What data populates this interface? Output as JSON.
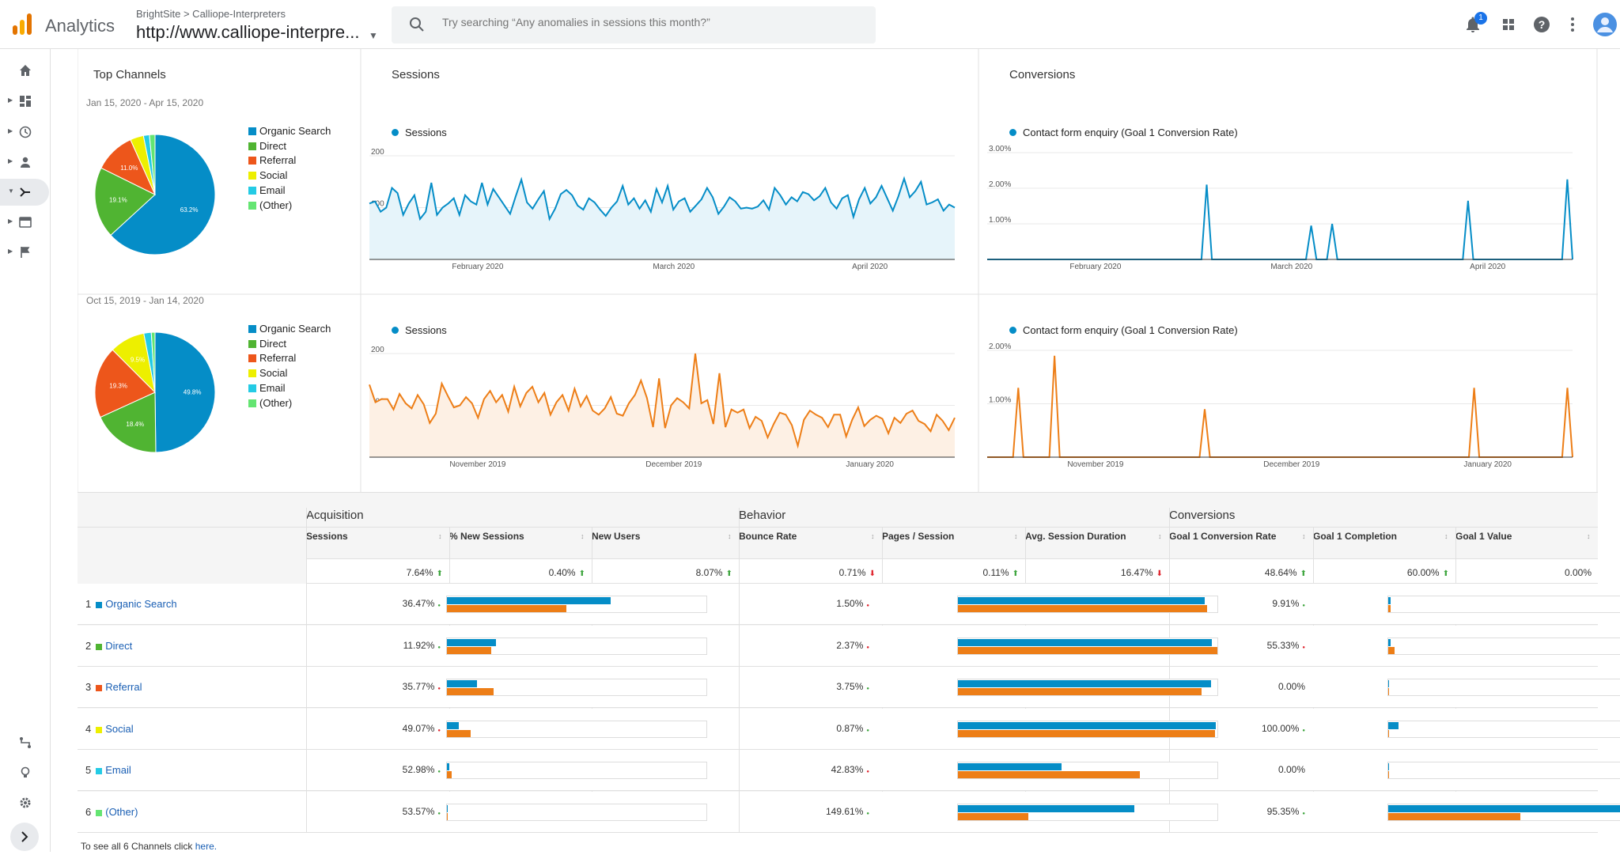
{
  "header": {
    "app_name": "Analytics",
    "breadcrumb": "BrightSite > Calliope-Interpreters",
    "property": "http://www.calliope-interpre...",
    "search_placeholder": "Try searching “Any anomalies in sessions this month?”",
    "notification_count": "1"
  },
  "colors": {
    "blue": "#058dc7",
    "orange": "#ed7e17",
    "green": "#50b432",
    "red": "#ed561b",
    "yellow": "#edef00",
    "cyan": "#24cbe5",
    "lightgreen": "#64e572"
  },
  "panels": {
    "top_channels": "Top Channels",
    "sessions": "Sessions",
    "conversions": "Conversions",
    "range_current": "Jan 15, 2020 - Apr 15, 2020",
    "range_previous": "Oct 15, 2019 - Jan 14, 2020",
    "sessions_series": "Sessions",
    "conversion_series": "Contact form enquiry (Goal 1 Conversion Rate)"
  },
  "chart_data": [
    {
      "type": "pie",
      "title": "Jan 15, 2020 - Apr 15, 2020",
      "categories": [
        "Organic Search",
        "Direct",
        "Referral",
        "Social",
        "Email",
        "(Other)"
      ],
      "values": [
        63.2,
        19.1,
        11.0,
        3.6,
        1.6,
        1.5
      ],
      "labels": [
        "63.2%",
        "19.1%",
        "11.0%",
        "",
        "",
        ""
      ],
      "colors": [
        "#058dc7",
        "#50b432",
        "#ed561b",
        "#edef00",
        "#24cbe5",
        "#64e572"
      ],
      "legend": "right"
    },
    {
      "type": "pie",
      "title": "Oct 15, 2019 - Jan 14, 2020",
      "categories": [
        "Organic Search",
        "Direct",
        "Referral",
        "Social",
        "Email",
        "(Other)"
      ],
      "values": [
        49.8,
        18.4,
        19.3,
        9.5,
        2.0,
        1.0
      ],
      "labels": [
        "49.8%",
        "18.4%",
        "19.3%",
        "9.5%",
        "",
        ""
      ],
      "colors": [
        "#058dc7",
        "#50b432",
        "#ed561b",
        "#edef00",
        "#24cbe5",
        "#64e572"
      ],
      "legend": "right"
    },
    {
      "type": "area",
      "series_name": "Sessions",
      "ylim": [
        0,
        200
      ],
      "yticks": [
        "200",
        "100"
      ],
      "xticks": [
        "February 2020",
        "March 2020",
        "April 2020"
      ],
      "color": "#058dc7",
      "values": [
        108,
        112,
        92,
        100,
        138,
        128,
        86,
        108,
        124,
        78,
        92,
        148,
        86,
        100,
        108,
        118,
        86,
        124,
        112,
        106,
        148,
        106,
        136,
        120,
        104,
        88,
        122,
        154,
        110,
        98,
        116,
        132,
        78,
        98,
        126,
        134,
        124,
        104,
        96,
        118,
        110,
        96,
        84,
        100,
        112,
        142,
        106,
        118,
        98,
        114,
        92,
        136,
        110,
        142,
        96,
        112,
        118,
        92,
        104,
        116,
        138,
        120,
        88,
        102,
        120,
        112,
        98,
        100,
        98,
        102,
        114,
        96,
        138,
        124,
        106,
        120,
        112,
        130,
        126,
        114,
        122,
        138,
        110,
        98,
        118,
        124,
        82,
        116,
        138,
        108,
        120,
        142,
        118,
        94,
        122,
        156,
        120,
        132,
        150,
        106,
        110,
        116,
        94,
        106,
        100
      ],
      "grid": true
    },
    {
      "type": "area",
      "series_name": "Sessions",
      "ylim": [
        0,
        200
      ],
      "yticks": [
        "200",
        "100"
      ],
      "xticks": [
        "November 2019",
        "December 2019",
        "January 2020"
      ],
      "color": "#ed7e17",
      "values": [
        140,
        106,
        112,
        112,
        92,
        122,
        104,
        94,
        120,
        102,
        66,
        84,
        142,
        118,
        96,
        100,
        116,
        104,
        76,
        112,
        128,
        106,
        120,
        88,
        136,
        98,
        124,
        136,
        106,
        124,
        82,
        106,
        120,
        90,
        132,
        98,
        118,
        90,
        82,
        94,
        116,
        84,
        80,
        104,
        120,
        148,
        114,
        58,
        152,
        56,
        100,
        114,
        106,
        94,
        200,
        104,
        110,
        64,
        162,
        58,
        92,
        86,
        92,
        56,
        78,
        70,
        38,
        64,
        86,
        82,
        62,
        22,
        72,
        90,
        82,
        76,
        58,
        82,
        82,
        40,
        72,
        96,
        60,
        72,
        80,
        74,
        46,
        76,
        66,
        84,
        90,
        70,
        64,
        50,
        82,
        70,
        52,
        76
      ],
      "grid": true
    },
    {
      "type": "line",
      "series_name": "Contact form enquiry (Goal 1 Conversion Rate)",
      "ylim": [
        0,
        3
      ],
      "yticks": [
        "3.00%",
        "2.00%",
        "1.00%"
      ],
      "xticks": [
        "February 2020",
        "March 2020",
        "April 2020"
      ],
      "color": "#058dc7",
      "values": [
        0,
        0,
        0,
        0,
        0,
        0,
        0,
        0,
        0,
        0,
        0,
        0,
        0,
        0,
        0,
        0,
        0,
        0,
        0,
        0,
        0,
        0,
        0,
        0,
        0,
        0,
        0,
        0,
        0,
        0,
        0,
        0,
        0,
        0,
        0,
        0,
        0,
        0,
        0,
        0,
        0,
        0,
        2.1,
        0,
        0,
        0,
        0,
        0,
        0,
        0,
        0,
        0,
        0,
        0,
        0,
        0,
        0,
        0,
        0,
        0,
        0,
        0,
        0.95,
        0,
        0,
        0,
        1.0,
        0,
        0,
        0,
        0,
        0,
        0,
        0,
        0,
        0,
        0,
        0,
        0,
        0,
        0,
        0,
        0,
        0,
        0,
        0,
        0,
        0,
        0,
        0,
        0,
        0,
        1.65,
        0,
        0,
        0,
        0,
        0,
        0,
        0,
        0,
        0,
        0,
        0,
        0,
        0,
        0,
        0,
        0,
        0,
        0,
        2.25,
        0
      ],
      "grid": true
    },
    {
      "type": "line",
      "series_name": "Contact form enquiry (Goal 1 Conversion Rate)",
      "ylim": [
        0,
        2
      ],
      "yticks": [
        "2.00%",
        "1.00%"
      ],
      "xticks": [
        "November 2019",
        "December 2019",
        "January 2020"
      ],
      "color": "#ed7e17",
      "values": [
        0,
        0,
        0,
        0,
        0,
        0,
        1.3,
        0,
        0,
        0,
        0,
        0,
        0,
        1.9,
        0,
        0,
        0,
        0,
        0,
        0,
        0,
        0,
        0,
        0,
        0,
        0,
        0,
        0,
        0,
        0,
        0,
        0,
        0,
        0,
        0,
        0,
        0,
        0,
        0,
        0,
        0,
        0,
        0.9,
        0,
        0,
        0,
        0,
        0,
        0,
        0,
        0,
        0,
        0,
        0,
        0,
        0,
        0,
        0,
        0,
        0,
        0,
        0,
        0,
        0,
        0,
        0,
        0,
        0,
        0,
        0,
        0,
        0,
        0,
        0,
        0,
        0,
        0,
        0,
        0,
        0,
        0,
        0,
        0,
        0,
        0,
        0,
        0,
        0,
        0,
        0,
        0,
        0,
        0,
        0,
        1.3,
        0,
        0,
        0,
        0,
        0,
        0,
        0,
        0,
        0,
        0,
        0,
        0,
        0,
        0,
        0,
        0,
        0,
        1.3,
        0
      ],
      "grid": true
    }
  ],
  "table": {
    "groups": [
      "Acquisition",
      "Behavior",
      "Conversions"
    ],
    "columns": [
      "Sessions",
      "% New Sessions",
      "New Users",
      "Bounce Rate",
      "Pages / Session",
      "Avg. Session Duration",
      "Goal 1 Conversion Rate",
      "Goal 1 Completion",
      "Goal 1 Value"
    ],
    "totals": [
      "7.64%",
      "0.40%",
      "8.07%",
      "0.71%",
      "0.11%",
      "16.47%",
      "48.64%",
      "60.00%",
      "0.00%"
    ],
    "totals_dir": [
      "up",
      "up",
      "up",
      "down",
      "up",
      "down",
      "up",
      "up",
      ""
    ],
    "rows": [
      {
        "num": "1",
        "name": "Organic Search",
        "color": "#058dc7",
        "sessions": "36.47%",
        "sessions_dir": "up",
        "bounce": "1.50%",
        "bounce_dir": "down",
        "goal": "9.91%",
        "goal_dir": "up",
        "sess_bars": [
          0.63,
          0.46
        ],
        "beh_bars": [
          0.95,
          0.96
        ],
        "conv_bars": [
          0.01,
          0.01
        ]
      },
      {
        "num": "2",
        "name": "Direct",
        "color": "#50b432",
        "sessions": "11.92%",
        "sessions_dir": "up",
        "bounce": "2.37%",
        "bounce_dir": "down",
        "goal": "55.33%",
        "goal_dir": "down",
        "sess_bars": [
          0.19,
          0.17
        ],
        "beh_bars": [
          0.98,
          1.0
        ],
        "conv_bars": [
          0.01,
          0.025
        ]
      },
      {
        "num": "3",
        "name": "Referral",
        "color": "#ed561b",
        "sessions": "35.77%",
        "sessions_dir": "down",
        "bounce": "3.75%",
        "bounce_dir": "up",
        "goal": "0.00%",
        "goal_dir": "",
        "sess_bars": [
          0.115,
          0.18
        ],
        "beh_bars": [
          0.975,
          0.94
        ],
        "conv_bars": [
          0,
          0
        ]
      },
      {
        "num": "4",
        "name": "Social",
        "color": "#edef00",
        "sessions": "49.07%",
        "sessions_dir": "down",
        "bounce": "0.87%",
        "bounce_dir": "up",
        "goal": "100.00%",
        "goal_dir": "up",
        "sess_bars": [
          0.045,
          0.09
        ],
        "beh_bars": [
          0.995,
          0.99
        ],
        "conv_bars": [
          0.04,
          0
        ]
      },
      {
        "num": "5",
        "name": "Email",
        "color": "#24cbe5",
        "sessions": "52.98%",
        "sessions_dir": "up",
        "bounce": "42.83%",
        "bounce_dir": "down",
        "goal": "0.00%",
        "goal_dir": "",
        "sess_bars": [
          0.008,
          0.018
        ],
        "beh_bars": [
          0.4,
          0.7
        ],
        "conv_bars": [
          0,
          0
        ]
      },
      {
        "num": "6",
        "name": "(Other)",
        "color": "#64e572",
        "sessions": "53.57%",
        "sessions_dir": "up",
        "bounce": "149.61%",
        "bounce_dir": "up",
        "goal": "95.35%",
        "goal_dir": "up",
        "sess_bars": [
          0.004,
          0.004
        ],
        "beh_bars": [
          0.68,
          0.27
        ],
        "conv_bars": [
          1.0,
          0.51
        ]
      }
    ],
    "footer_text": "To see all 6 Channels click ",
    "footer_link": "here."
  }
}
